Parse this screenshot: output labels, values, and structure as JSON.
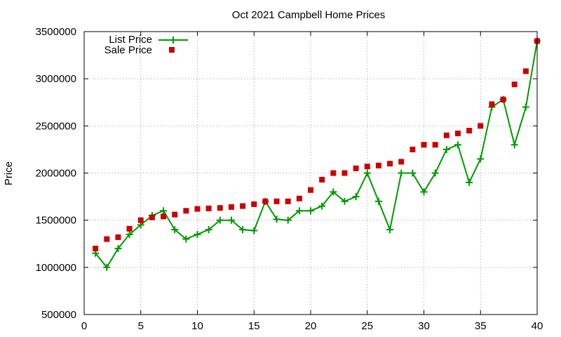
{
  "chart_data": {
    "type": "line",
    "title": "Oct 2021 Campbell Home Prices",
    "xlabel": "",
    "ylabel": "Price",
    "xlim": [
      0,
      40
    ],
    "ylim": [
      500000,
      3500000
    ],
    "xticks": [
      0,
      5,
      10,
      15,
      20,
      25,
      30,
      35,
      40
    ],
    "yticks": [
      500000,
      1000000,
      1500000,
      2000000,
      2500000,
      3000000,
      3500000
    ],
    "grid": true,
    "legend_position": "top-left",
    "x": [
      1,
      2,
      3,
      4,
      5,
      6,
      7,
      8,
      9,
      10,
      11,
      12,
      13,
      14,
      15,
      16,
      17,
      18,
      19,
      20,
      21,
      22,
      23,
      24,
      25,
      26,
      27,
      28,
      29,
      30,
      31,
      32,
      33,
      34,
      35,
      36,
      37,
      38,
      39,
      40
    ],
    "series": [
      {
        "name": "List Price",
        "style": "linespoints",
        "color": "#009900",
        "marker": "plus",
        "values": [
          1150000,
          1000000,
          1200000,
          1350000,
          1450000,
          1550000,
          1600000,
          1400000,
          1300000,
          1350000,
          1400000,
          1500000,
          1500000,
          1400000,
          1390000,
          1700000,
          1510000,
          1500000,
          1600000,
          1600000,
          1650000,
          1800000,
          1700000,
          1750000,
          2000000,
          1700000,
          1400000,
          2000000,
          2000000,
          1800000,
          2000000,
          2250000,
          2300000,
          1900000,
          2150000,
          2700000,
          2780000,
          2300000,
          2700000,
          3400000
        ]
      },
      {
        "name": "Sale Price",
        "style": "points",
        "color": "#cc0000",
        "marker": "square",
        "values": [
          1200000,
          1300000,
          1320000,
          1410000,
          1500000,
          1530000,
          1540000,
          1560000,
          1600000,
          1620000,
          1625000,
          1630000,
          1640000,
          1650000,
          1670000,
          1700000,
          1700000,
          1700000,
          1730000,
          1820000,
          1930000,
          2000000,
          2000000,
          2050000,
          2070000,
          2080000,
          2100000,
          2120000,
          2250000,
          2300000,
          2300000,
          2400000,
          2420000,
          2450000,
          2500000,
          2730000,
          2780000,
          2940000,
          3080000,
          3400000
        ]
      }
    ]
  }
}
